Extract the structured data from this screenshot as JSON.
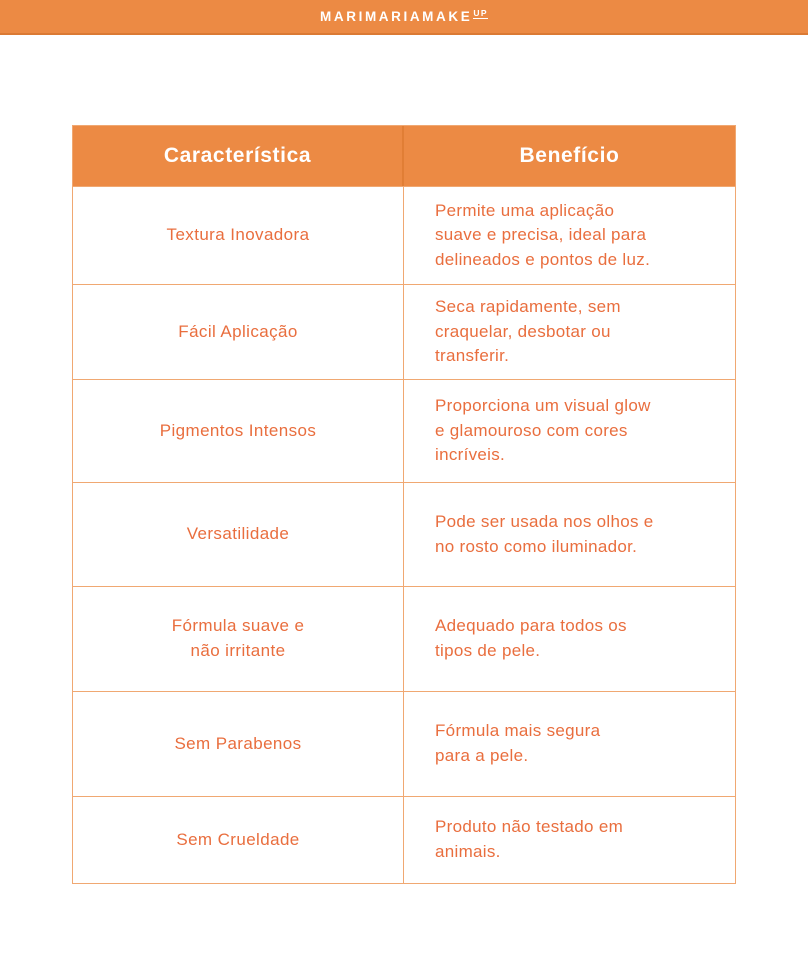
{
  "brand": {
    "name": "MARIMARIAMAKE",
    "name_sup": "UP"
  },
  "colors": {
    "accent_orange": "#EC8A44",
    "accent_orange_dark": "#DB7A34",
    "text_orange": "#E96E3E",
    "border_orange": "#F0A872",
    "header_text": "#FFFFFF",
    "background": "#FFFFFF"
  },
  "table": {
    "columns": [
      "Característica",
      "Benefício"
    ],
    "rows": [
      {
        "feature": "Textura Inovadora",
        "benefit": "Permite uma aplicação\nsuave e precisa, ideal para\ndelineados e pontos de luz."
      },
      {
        "feature": "Fácil Aplicação",
        "benefit": "Seca rapidamente, sem\ncraquelar, desbotar ou\ntransferir."
      },
      {
        "feature": "Pigmentos Intensos",
        "benefit": "Proporciona um visual glow\ne glamouroso com cores\nincríveis."
      },
      {
        "feature": "Versatilidade",
        "benefit": "Pode ser usada nos olhos e\nno rosto como iluminador."
      },
      {
        "feature": "Fórmula suave e\nnão irritante",
        "benefit": "Adequado para todos os\ntipos de pele."
      },
      {
        "feature": "Sem Parabenos",
        "benefit": "Fórmula mais segura\npara a pele."
      },
      {
        "feature": "Sem Crueldade",
        "benefit": "Produto não testado em\nanimais."
      }
    ]
  }
}
